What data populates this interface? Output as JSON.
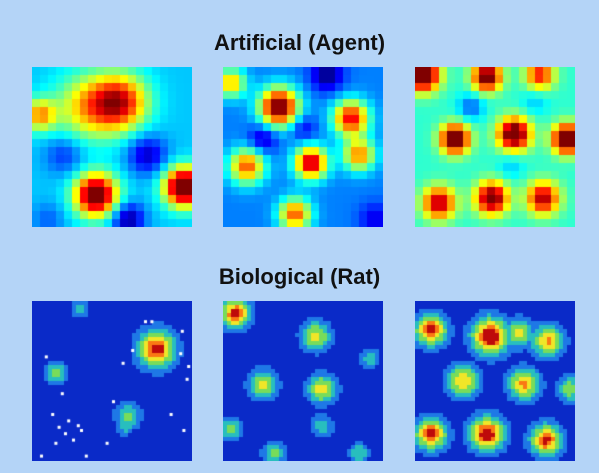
{
  "artificial_section": {
    "title": "Artificial (Agent)"
  },
  "biological_section": {
    "title": "Biological (Rat)"
  },
  "colors": {
    "page_background": "#b4d4f7",
    "jet_scale": [
      "#00007f",
      "#0000ff",
      "#007fff",
      "#00ffff",
      "#7fff7f",
      "#ffff00",
      "#ff7f00",
      "#ff0000",
      "#7f0000"
    ],
    "bio_background": "#0a2ac8",
    "bio_dots": "#ffffff"
  },
  "icons": [
    "heatmap-icon"
  ]
}
